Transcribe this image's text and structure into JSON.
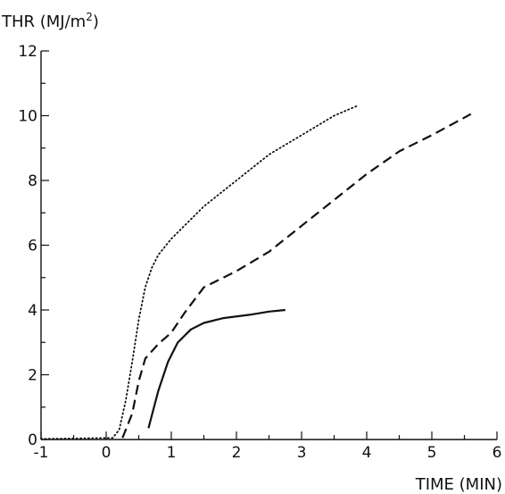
{
  "chart_data": {
    "type": "line",
    "ylabel_main": "THR (MJ/m",
    "ylabel_sup": "2",
    "ylabel_close": ")",
    "xlabel": "TIME (MIN)",
    "xlim": [
      -1,
      6
    ],
    "ylim": [
      0,
      12
    ],
    "x_ticks": [
      -1,
      0,
      1,
      2,
      3,
      4,
      5,
      6
    ],
    "y_ticks": [
      0,
      2,
      4,
      6,
      8,
      10,
      12
    ],
    "grid": false,
    "series": [
      {
        "style": "dotted",
        "points": [
          [
            -1,
            0.02
          ],
          [
            0.1,
            0.05
          ],
          [
            0.2,
            0.3
          ],
          [
            0.3,
            1.2
          ],
          [
            0.4,
            2.4
          ],
          [
            0.5,
            3.7
          ],
          [
            0.6,
            4.7
          ],
          [
            0.7,
            5.3
          ],
          [
            0.8,
            5.7
          ],
          [
            1.0,
            6.2
          ],
          [
            1.5,
            7.2
          ],
          [
            2.0,
            8.0
          ],
          [
            2.5,
            8.8
          ],
          [
            3.0,
            9.4
          ],
          [
            3.5,
            10.0
          ],
          [
            3.85,
            10.3
          ]
        ]
      },
      {
        "style": "dashed",
        "points": [
          [
            0.25,
            0.05
          ],
          [
            0.4,
            0.8
          ],
          [
            0.5,
            1.8
          ],
          [
            0.6,
            2.5
          ],
          [
            0.8,
            2.95
          ],
          [
            1.0,
            3.3
          ],
          [
            1.2,
            3.9
          ],
          [
            1.5,
            4.7
          ],
          [
            2.0,
            5.2
          ],
          [
            2.5,
            5.8
          ],
          [
            3.0,
            6.6
          ],
          [
            3.5,
            7.4
          ],
          [
            4.0,
            8.2
          ],
          [
            4.5,
            8.9
          ],
          [
            5.0,
            9.4
          ],
          [
            5.6,
            10.05
          ]
        ]
      },
      {
        "style": "solid",
        "points": [
          [
            0.65,
            0.35
          ],
          [
            0.8,
            1.5
          ],
          [
            0.95,
            2.4
          ],
          [
            1.1,
            3.0
          ],
          [
            1.3,
            3.4
          ],
          [
            1.5,
            3.6
          ],
          [
            1.8,
            3.75
          ],
          [
            2.2,
            3.85
          ],
          [
            2.5,
            3.95
          ],
          [
            2.75,
            4.0
          ]
        ]
      }
    ]
  }
}
